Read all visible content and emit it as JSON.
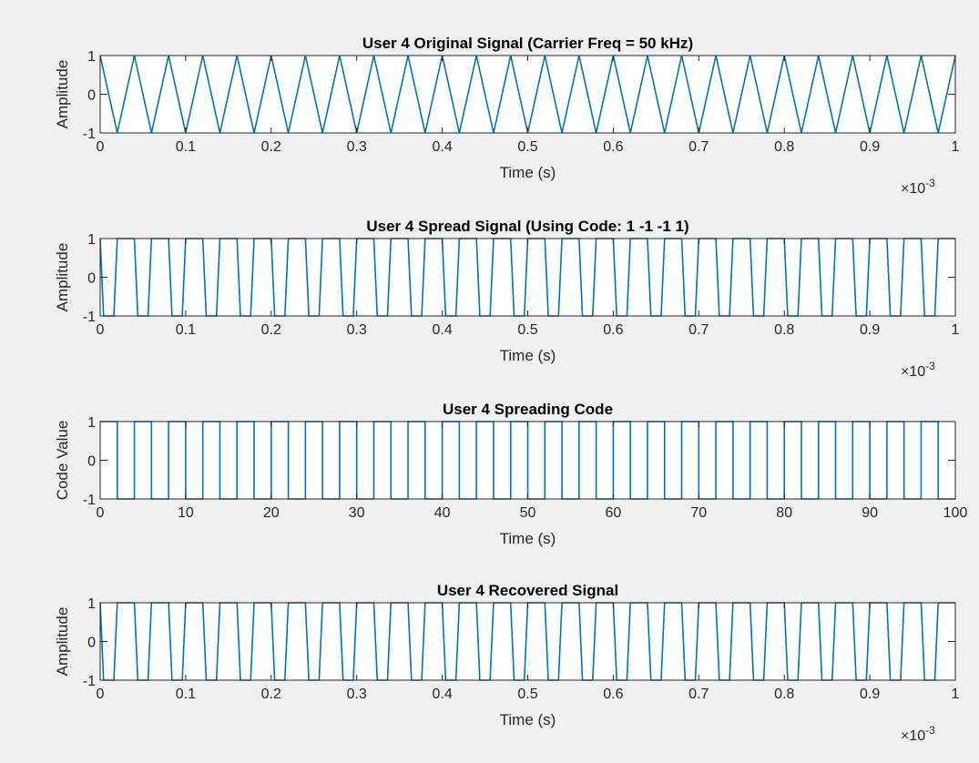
{
  "figure": {
    "background": "#f0f0f0",
    "axes_color": "#262626",
    "line_color": "#0072bd"
  },
  "chart_data": [
    {
      "type": "line",
      "title": "User 4 Original Signal (Carrier Freq = 50 kHz)",
      "xlabel": "Time (s)",
      "ylabel": "Amplitude",
      "xlim": [
        0,
        1
      ],
      "ylim": [
        -1,
        1
      ],
      "x_exponent_label": "×10",
      "x_exponent_power": "-3",
      "x_scale_note": "x values in units of 1e-3 s",
      "xticks": [
        "0",
        "0.1",
        "0.2",
        "0.3",
        "0.4",
        "0.5",
        "0.6",
        "0.7",
        "0.8",
        "0.9",
        "1"
      ],
      "yticks": [
        "-1",
        "0",
        "1"
      ],
      "series": [
        {
          "waveform": "triangle",
          "start": 1,
          "period": 0.04,
          "x_min": 0,
          "x_max": 1
        }
      ]
    },
    {
      "type": "line",
      "title": "User 4 Spread Signal (Using Code: 1 -1 -1  1)",
      "xlabel": "Time (s)",
      "ylabel": "Amplitude",
      "xlim": [
        0,
        1
      ],
      "ylim": [
        -1,
        1
      ],
      "x_exponent_label": "×10",
      "x_exponent_power": "-3",
      "x_scale_note": "x values in units of 1e-3 s",
      "xticks": [
        "0",
        "0.1",
        "0.2",
        "0.3",
        "0.4",
        "0.5",
        "0.6",
        "0.7",
        "0.8",
        "0.9",
        "1"
      ],
      "yticks": [
        "-1",
        "0",
        "1"
      ],
      "series": [
        {
          "waveform": "trapezoid",
          "start": 1,
          "period": 0.04,
          "x_min": 0,
          "x_max": 1
        }
      ]
    },
    {
      "type": "line",
      "title": "User 4 Spreading Code",
      "xlabel": "Time (s)",
      "ylabel": "Code Value",
      "xlim": [
        0,
        100
      ],
      "ylim": [
        -1,
        1
      ],
      "x_exponent_label": "",
      "x_exponent_power": "",
      "xticks": [
        "0",
        "10",
        "20",
        "30",
        "40",
        "50",
        "60",
        "70",
        "80",
        "90",
        "100"
      ],
      "yticks": [
        "-1",
        "0",
        "1"
      ],
      "series": [
        {
          "waveform": "square",
          "start": 1,
          "period": 4,
          "x_min": 0,
          "x_max": 100
        }
      ]
    },
    {
      "type": "line",
      "title": "User 4 Recovered Signal",
      "xlabel": "Time (s)",
      "ylabel": "Amplitude",
      "xlim": [
        0,
        1
      ],
      "ylim": [
        -1,
        1
      ],
      "x_exponent_label": "×10",
      "x_exponent_power": "-3",
      "x_scale_note": "x values in units of 1e-3 s",
      "xticks": [
        "0",
        "0.1",
        "0.2",
        "0.3",
        "0.4",
        "0.5",
        "0.6",
        "0.7",
        "0.8",
        "0.9",
        "1"
      ],
      "yticks": [
        "-1",
        "0",
        "1"
      ],
      "series": [
        {
          "waveform": "trapezoid",
          "start": 1,
          "period": 0.04,
          "x_min": 0,
          "x_max": 1
        }
      ]
    }
  ]
}
